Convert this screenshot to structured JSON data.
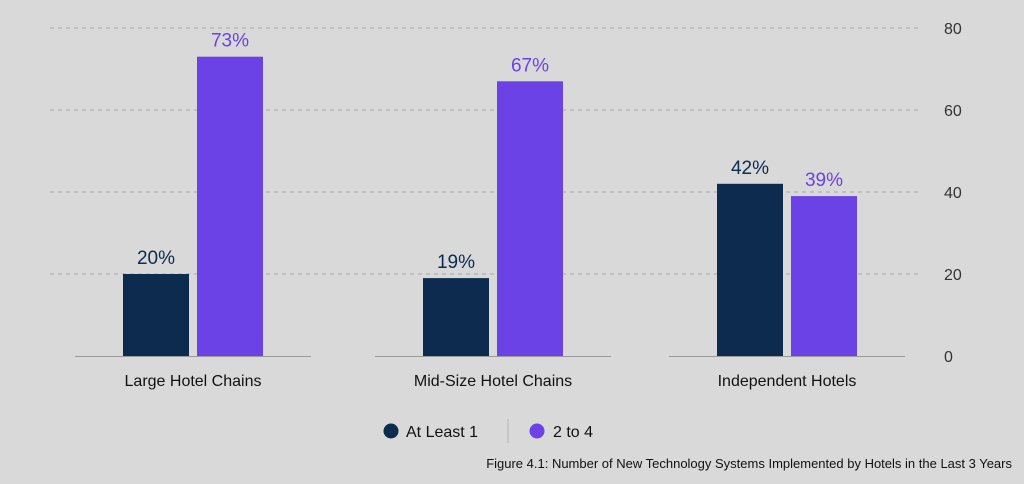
{
  "chart_data": {
    "type": "bar",
    "categories": [
      "Large Hotel Chains",
      "Mid-Size Hotel Chains",
      "Independent Hotels"
    ],
    "series": [
      {
        "name": "At Least 1",
        "values": [
          20,
          19,
          42
        ],
        "labels": [
          "20%",
          "19%",
          "42%"
        ],
        "color": "#0d2b4f"
      },
      {
        "name": "2 to 4",
        "values": [
          73,
          67,
          39
        ],
        "labels": [
          "73%",
          "67%",
          "39%"
        ],
        "color": "#6a42e6"
      }
    ],
    "ylim": [
      0,
      80
    ],
    "yticks": [
      0,
      20,
      40,
      60,
      80
    ],
    "y_axis_side": "right",
    "grid": true,
    "legend_position": "bottom-center"
  },
  "caption": "Figure 4.1: Number of New Technology Systems Implemented by Hotels in the Last 3 Years"
}
